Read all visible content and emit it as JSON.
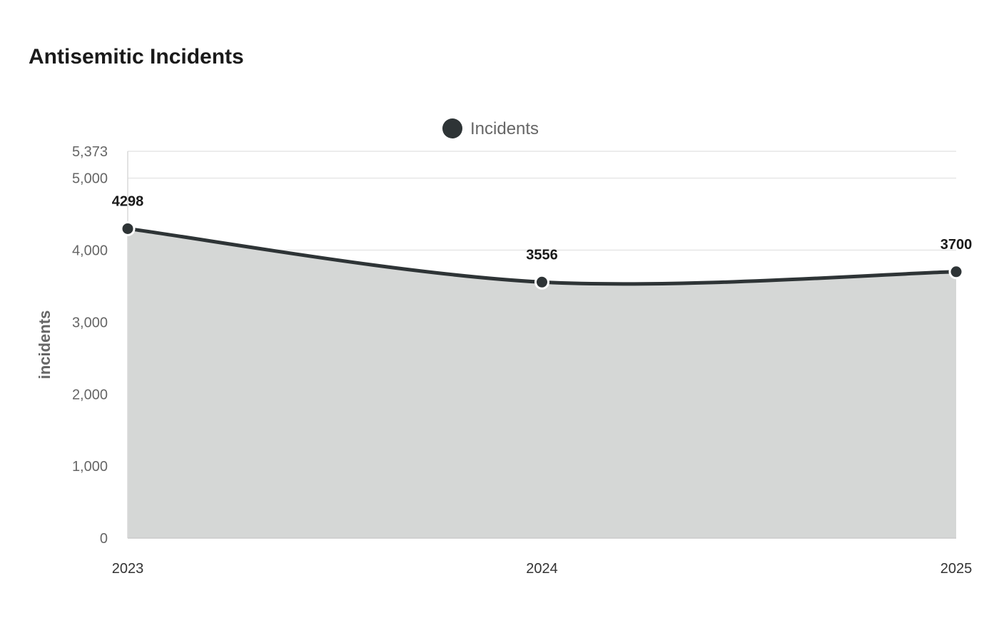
{
  "chart_data": {
    "type": "area",
    "title": "Antisemitic Incidents",
    "xlabel": "",
    "ylabel": "incidents",
    "categories": [
      "2023",
      "2024",
      "2025"
    ],
    "series": [
      {
        "name": "Incidents",
        "values": [
          4298,
          3556,
          3700
        ]
      }
    ],
    "ylim": [
      0,
      5373
    ],
    "yticks": [
      {
        "value": 0,
        "label": "0"
      },
      {
        "value": 1000,
        "label": "1,000"
      },
      {
        "value": 2000,
        "label": "2,000"
      },
      {
        "value": 3000,
        "label": "3,000"
      },
      {
        "value": 4000,
        "label": "4,000"
      },
      {
        "value": 5000,
        "label": "5,000"
      },
      {
        "value": 5373,
        "label": "5,373"
      }
    ],
    "grid": true,
    "legend": "top-center",
    "data_labels": true
  },
  "colors": {
    "line": "#2e3436",
    "area": "#d5d7d6",
    "marker": "#2e3436",
    "marker_stroke": "#ffffff"
  }
}
